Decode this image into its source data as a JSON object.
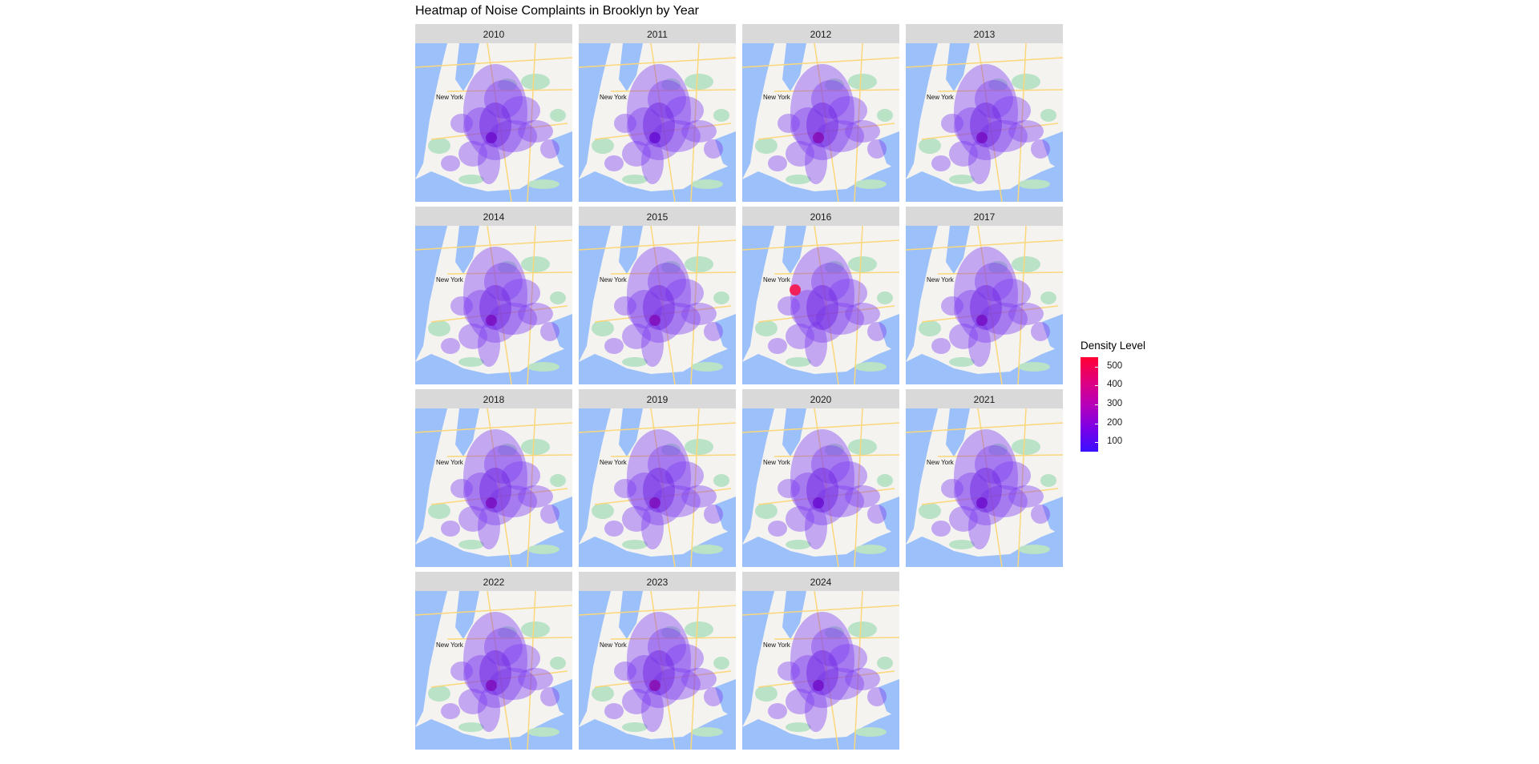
{
  "chart_data": {
    "type": "heatmap",
    "title": "Heatmap of Noise Complaints in Brooklyn by Year",
    "facets": [
      "2010",
      "2011",
      "2012",
      "2013",
      "2014",
      "2015",
      "2016",
      "2017",
      "2018",
      "2019",
      "2020",
      "2021",
      "2022",
      "2023",
      "2024"
    ],
    "map_label": "New York",
    "legend": {
      "title": "Density Level",
      "ticks": [
        100,
        200,
        300,
        400,
        500
      ],
      "range": [
        50,
        550
      ],
      "placement": "right",
      "colors": [
        "#3a10ff",
        "#7b00e6",
        "#b800b8",
        "#e0007d",
        "#ff0033"
      ]
    },
    "facet_hotspot_peak": [
      180,
      160,
      240,
      200,
      210,
      230,
      550,
      200,
      210,
      220,
      170,
      180,
      220,
      250,
      190
    ],
    "grid": false
  },
  "colors": {
    "strip": "#d9d9d9",
    "water": "#9cc0f9",
    "land": "#f4f3f0",
    "park": "#b9e2c7",
    "road": "#fbd77a",
    "density_fill": "#7f3ff0"
  }
}
